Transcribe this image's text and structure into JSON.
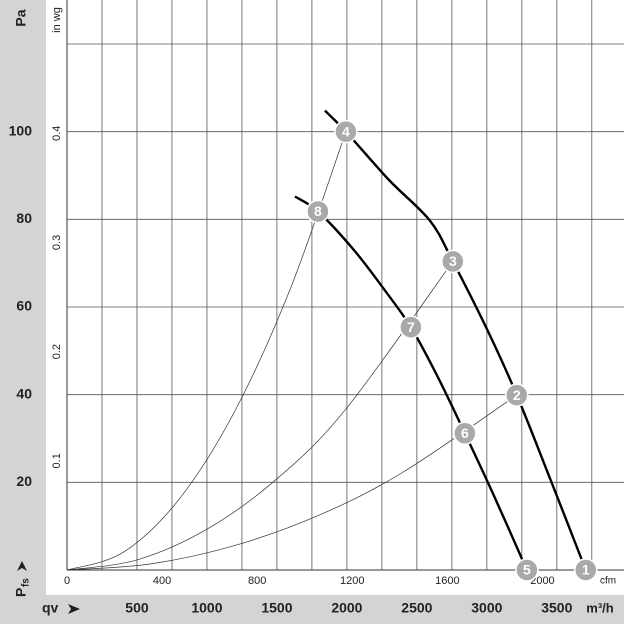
{
  "chart_data": {
    "type": "line",
    "y_label": "Pa",
    "y2_label": "in wg",
    "p_label": "P",
    "p_sub": "fs",
    "q_label": "qv",
    "x_unit": "m³/h",
    "x2_unit": "cfm",
    "xlim": [
      0,
      3980
    ],
    "ylim": [
      0,
      120
    ],
    "x2lim": [
      0,
      2343
    ],
    "y2lim": [
      0,
      0.4817
    ],
    "xticks": [
      500,
      1000,
      1500,
      2000,
      2500,
      3000,
      3500
    ],
    "yticks": [
      20,
      40,
      60,
      80,
      100
    ],
    "x2ticks": [
      0,
      400,
      800,
      1200,
      1600,
      2000
    ],
    "y2ticks": [
      0.1,
      0.2,
      0.3,
      0.4
    ],
    "xgrid": [
      250,
      500,
      750,
      1000,
      1250,
      1500,
      1750,
      2000,
      2250,
      2500,
      2750,
      3000,
      3250,
      3500,
      3750
    ],
    "ygrid": [
      20,
      40,
      60,
      80,
      100,
      120
    ],
    "series": [
      {
        "color": "#000000",
        "width": 2.4,
        "x": [
          1843,
          1993,
          2300,
          2593,
          2757,
          3000,
          3214,
          3450,
          3707
        ],
        "values": [
          104.8,
          100,
          89,
          79.7,
          70.4,
          55,
          39.9,
          21,
          0
        ]
      },
      {
        "color": "#000000",
        "width": 2.4,
        "x": [
          1629,
          1793,
          2050,
          2271,
          2457,
          2650,
          2843,
          3050,
          3286
        ],
        "values": [
          85.2,
          81.8,
          73,
          63.8,
          55.4,
          44,
          31.2,
          17,
          0
        ]
      },
      {
        "color": "#333333",
        "width": 0.7,
        "x": [
          0,
          400,
          800,
          1200,
          1600,
          1993
        ],
        "values": [
          0,
          4,
          16.1,
          36.3,
          64.5,
          100
        ]
      },
      {
        "color": "#333333",
        "width": 0.7,
        "x": [
          0,
          500,
          1000,
          1500,
          2000,
          2757
        ],
        "values": [
          0,
          2.3,
          9.3,
          20.8,
          37,
          70.4
        ]
      },
      {
        "color": "#333333",
        "width": 0.7,
        "x": [
          0,
          600,
          1200,
          1800,
          2400,
          3214
        ],
        "values": [
          0,
          1.4,
          5.6,
          12.5,
          22.3,
          39.9
        ]
      }
    ],
    "points": [
      {
        "label": "1",
        "x": 3707,
        "y": 0
      },
      {
        "label": "2",
        "x": 3214,
        "y": 39.9
      },
      {
        "label": "3",
        "x": 2757,
        "y": 70.4
      },
      {
        "label": "4",
        "x": 1993,
        "y": 100
      },
      {
        "label": "5",
        "x": 3286,
        "y": 0
      },
      {
        "label": "6",
        "x": 2843,
        "y": 31.2
      },
      {
        "label": "7",
        "x": 2457,
        "y": 55.4
      },
      {
        "label": "8",
        "x": 1793,
        "y": 81.8
      }
    ]
  }
}
